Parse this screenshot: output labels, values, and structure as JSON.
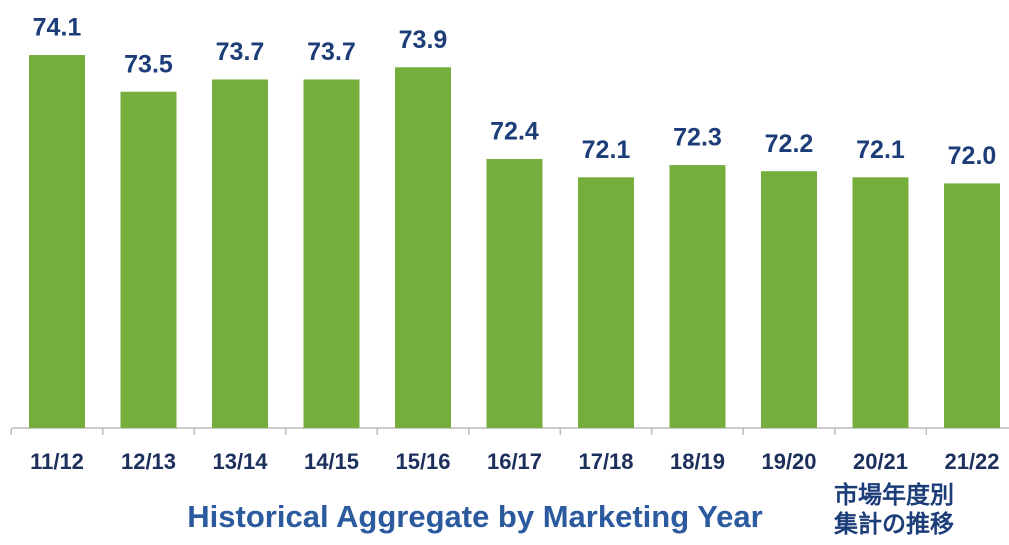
{
  "chart_data": {
    "type": "bar",
    "title": "Historical Aggregate by Marketing Year",
    "subtitle": [
      "市場年度別",
      "集計の推移"
    ],
    "categories": [
      "11/12",
      "12/13",
      "13/14",
      "14/15",
      "15/16",
      "16/17",
      "17/18",
      "18/19",
      "19/20",
      "20/21",
      "21/22"
    ],
    "values": [
      74.1,
      73.5,
      73.7,
      73.7,
      73.9,
      72.4,
      72.1,
      72.3,
      72.2,
      72.1,
      72.0
    ],
    "value_labels": [
      "74.1",
      "73.5",
      "73.7",
      "73.7",
      "73.9",
      "72.4",
      "72.1",
      "72.3",
      "72.2",
      "72.1",
      "72.0"
    ],
    "color": "#76ae3e",
    "ylim": [
      68,
      75
    ]
  }
}
